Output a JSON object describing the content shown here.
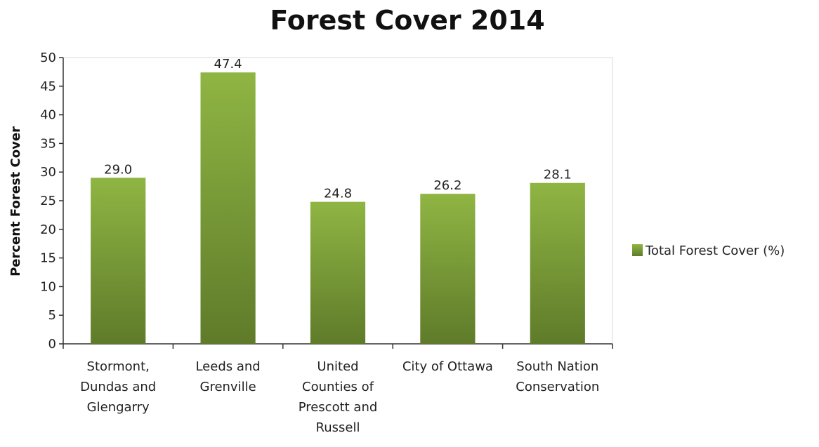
{
  "chart_data": {
    "type": "bar",
    "title": "Forest Cover 2014",
    "xlabel": "",
    "ylabel": "Percent Forest Cover",
    "ylim": [
      0,
      50
    ],
    "ytick_step": 5,
    "yticks": [
      "0",
      "5",
      "10",
      "15",
      "20",
      "25",
      "30",
      "35",
      "40",
      "45",
      "50"
    ],
    "categories": [
      "Stormont, Dundas and Glengarry",
      "Leeds and Grenville",
      "United Counties of Prescott and Russell",
      "City of Ottawa",
      "South Nation Conservation"
    ],
    "category_lines": [
      [
        "Stormont,",
        "Dundas and",
        "Glengarry"
      ],
      [
        "Leeds and",
        "Grenville"
      ],
      [
        "United",
        "Counties of",
        "Prescott and",
        "Russell"
      ],
      [
        "City of Ottawa"
      ],
      [
        "South Nation",
        "Conservation"
      ]
    ],
    "series": [
      {
        "name": "Total Forest Cover (%)",
        "values": [
          29.0,
          47.4,
          24.8,
          26.2,
          28.1
        ],
        "value_labels": [
          "29.0",
          "47.4",
          "24.8",
          "26.2",
          "28.1"
        ]
      }
    ],
    "legend_position": "right",
    "grid": false,
    "colors": {
      "bar_top": "#8fb543",
      "bar_bottom": "#5f7b2a",
      "axis": "#333333",
      "frame": "#d9d9d9"
    }
  }
}
